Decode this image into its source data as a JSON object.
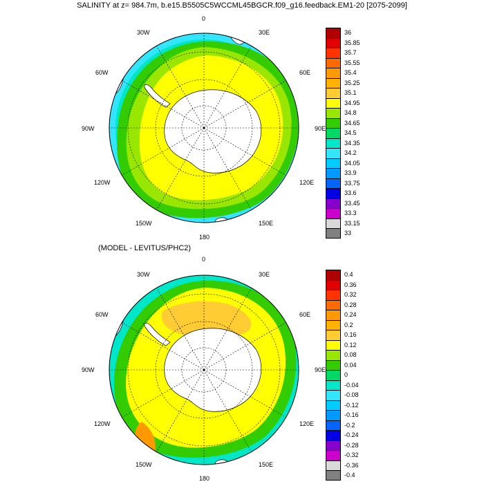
{
  "top_panel": {
    "title": "SALINITY at z= 984.7m, b.e15.B5505C5WCCML45BGCR.f09_g16.feedback.EM1-20 [2075-2099]",
    "lon_labels": [
      "0",
      "30E",
      "60E",
      "90E",
      "120E",
      "150E",
      "180",
      "150W",
      "120W",
      "90W",
      "60W",
      "30W"
    ],
    "colorbar": {
      "labels": [
        "36",
        "35.85",
        "35.7",
        "35.55",
        "35.4",
        "35.25",
        "35.1",
        "34.95",
        "34.8",
        "34.65",
        "34.5",
        "34.35",
        "34.2",
        "34.05",
        "33.9",
        "33.75",
        "33.6",
        "33.45",
        "33.3",
        "33.15",
        "33"
      ],
      "colors": [
        "#b00000",
        "#e00000",
        "#ff3300",
        "#ff6a00",
        "#ff9900",
        "#ffb300",
        "#ffcc33",
        "#ffff00",
        "#99e600",
        "#33cc00",
        "#00d966",
        "#00e6c8",
        "#33e6ff",
        "#00ccff",
        "#0099ff",
        "#0066ff",
        "#0000e6",
        "#8800cc",
        "#cc00cc",
        "#d9d9d9",
        "#808080"
      ]
    }
  },
  "bottom_panel": {
    "title": "(MODEL - LEVITUS/PHC2)",
    "lon_labels": [
      "0",
      "30E",
      "60E",
      "90E",
      "120E",
      "150E",
      "180",
      "150W",
      "120W",
      "90W",
      "60W",
      "30W"
    ],
    "colorbar": {
      "labels": [
        "0.4",
        "0.36",
        "0.32",
        "0.28",
        "0.24",
        "0.2",
        "0.16",
        "0.12",
        "0.08",
        "0.04",
        "0",
        "-0.04",
        "-0.08",
        "-0.12",
        "-0.16",
        "-0.2",
        "-0.24",
        "-0.28",
        "-0.32",
        "-0.36",
        "-0.4"
      ],
      "colors": [
        "#b00000",
        "#e00000",
        "#ff3300",
        "#ff6a00",
        "#ff9900",
        "#ffb300",
        "#ffcc33",
        "#ffff00",
        "#99e600",
        "#33cc00",
        "#00d966",
        "#00e6c8",
        "#33e6ff",
        "#00ccff",
        "#0099ff",
        "#0066ff",
        "#0000e6",
        "#8800cc",
        "#cc00cc",
        "#d9d9d9",
        "#808080"
      ]
    }
  },
  "colors": {
    "land": "#ffffff",
    "outline": "#000000"
  }
}
